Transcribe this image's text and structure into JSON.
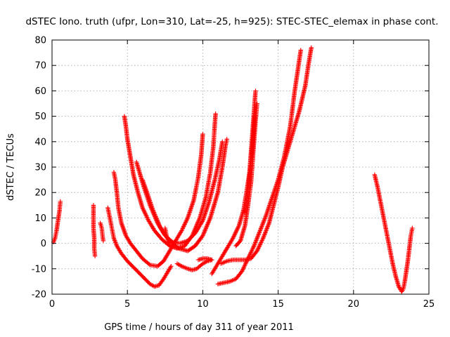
{
  "chart_data": {
    "type": "scatter",
    "title": "dSTEC Iono. truth (ufpr, Lon=310, Lat=-25, h=925): STEC-STEC_elemax in phase cont.",
    "xlabel": "GPS time / hours of day 311 of year 2011",
    "ylabel": "dSTEC  / TECUs",
    "xlim": [
      0,
      25
    ],
    "ylim": [
      -20,
      80
    ],
    "xticks": [
      0,
      5,
      10,
      15,
      20,
      25
    ],
    "yticks": [
      -20,
      -10,
      0,
      10,
      20,
      30,
      40,
      50,
      60,
      70,
      80
    ],
    "grid": true,
    "marker": "+",
    "color": "#ff0000",
    "series": [
      {
        "points": [
          [
            0.1,
            0.5
          ],
          [
            0.2,
            2
          ],
          [
            0.3,
            5
          ],
          [
            0.4,
            9
          ],
          [
            0.5,
            13
          ],
          [
            0.55,
            16.5
          ]
        ]
      },
      {
        "points": [
          [
            2.75,
            15
          ],
          [
            2.75,
            10
          ],
          [
            2.75,
            6
          ],
          [
            2.8,
            2
          ],
          [
            2.8,
            -2
          ],
          [
            2.85,
            -5
          ]
        ]
      },
      {
        "points": [
          [
            3.2,
            8
          ],
          [
            3.3,
            6
          ],
          [
            3.35,
            3
          ],
          [
            3.4,
            1
          ]
        ]
      },
      {
        "points": [
          [
            3.7,
            14
          ],
          [
            3.8,
            11
          ],
          [
            3.9,
            8
          ],
          [
            4.0,
            5
          ],
          [
            4.1,
            2
          ],
          [
            4.3,
            -1
          ],
          [
            4.6,
            -4
          ],
          [
            5.0,
            -7
          ],
          [
            5.5,
            -10
          ],
          [
            6.0,
            -13
          ],
          [
            6.5,
            -16
          ],
          [
            6.8,
            -17
          ],
          [
            7.1,
            -16.5
          ],
          [
            7.4,
            -14
          ],
          [
            7.7,
            -11
          ],
          [
            7.9,
            -9
          ]
        ]
      },
      {
        "points": [
          [
            4.1,
            28
          ],
          [
            4.2,
            25
          ],
          [
            4.3,
            20
          ],
          [
            4.4,
            14
          ],
          [
            4.6,
            8
          ],
          [
            4.9,
            3
          ],
          [
            5.2,
            0
          ],
          [
            5.6,
            -3
          ],
          [
            6.0,
            -6
          ],
          [
            6.5,
            -8.5
          ],
          [
            7.0,
            -9
          ],
          [
            7.4,
            -7
          ],
          [
            7.8,
            -3
          ],
          [
            8.2,
            1
          ],
          [
            8.6,
            5
          ],
          [
            9.0,
            10
          ],
          [
            9.4,
            17
          ],
          [
            9.7,
            26
          ],
          [
            9.9,
            35
          ],
          [
            10.0,
            43
          ]
        ]
      },
      {
        "points": [
          [
            4.8,
            50
          ],
          [
            4.9,
            46
          ],
          [
            5.0,
            41
          ],
          [
            5.2,
            34
          ],
          [
            5.4,
            27
          ],
          [
            5.7,
            20
          ],
          [
            6.0,
            14
          ],
          [
            6.4,
            9
          ],
          [
            6.8,
            5
          ],
          [
            7.3,
            1.5
          ],
          [
            7.8,
            -1
          ],
          [
            8.3,
            -2
          ],
          [
            8.8,
            -1
          ],
          [
            9.3,
            3
          ],
          [
            9.8,
            10
          ],
          [
            10.2,
            18
          ],
          [
            10.5,
            28
          ],
          [
            10.7,
            38
          ],
          [
            10.8,
            47
          ],
          [
            10.85,
            51
          ]
        ]
      },
      {
        "points": [
          [
            5.6,
            32
          ],
          [
            5.8,
            28
          ],
          [
            6.1,
            22
          ],
          [
            6.5,
            15
          ],
          [
            7.0,
            8
          ],
          [
            7.5,
            3
          ],
          [
            8.0,
            0.5
          ],
          [
            8.5,
            0
          ],
          [
            9.0,
            1
          ],
          [
            9.5,
            4
          ],
          [
            10.0,
            9
          ],
          [
            10.4,
            16
          ],
          [
            10.8,
            25
          ],
          [
            11.1,
            33
          ],
          [
            11.3,
            40
          ]
        ]
      },
      {
        "points": [
          [
            6.0,
            25
          ],
          [
            6.3,
            20
          ],
          [
            6.7,
            13
          ],
          [
            7.2,
            6
          ],
          [
            7.8,
            1
          ],
          [
            8.4,
            -2
          ],
          [
            9.0,
            -3
          ],
          [
            9.5,
            -1
          ],
          [
            10.0,
            3
          ],
          [
            10.5,
            10
          ],
          [
            11.0,
            20
          ],
          [
            11.3,
            30
          ],
          [
            11.5,
            38
          ],
          [
            11.6,
            41
          ]
        ]
      },
      {
        "points": [
          [
            7.5,
            6
          ],
          [
            7.6,
            3
          ],
          [
            7.7,
            1
          ],
          [
            7.8,
            -1
          ]
        ]
      },
      {
        "points": [
          [
            8.3,
            -8
          ],
          [
            8.6,
            -9
          ],
          [
            9.0,
            -10
          ],
          [
            9.3,
            -10.5
          ],
          [
            9.6,
            -10
          ],
          [
            9.8,
            -9
          ],
          [
            10.0,
            -8
          ],
          [
            10.3,
            -7
          ],
          [
            10.6,
            -6.5
          ]
        ]
      },
      {
        "points": [
          [
            9.7,
            -6.5
          ],
          [
            10.0,
            -6
          ],
          [
            10.3,
            -6
          ],
          [
            10.6,
            -6.5
          ]
        ]
      },
      {
        "points": [
          [
            10.6,
            -12
          ],
          [
            10.9,
            -9
          ],
          [
            11.2,
            -6
          ],
          [
            11.6,
            -2
          ],
          [
            12.0,
            2
          ],
          [
            12.4,
            7
          ],
          [
            12.7,
            13
          ],
          [
            12.9,
            20
          ],
          [
            13.1,
            28
          ],
          [
            13.2,
            36
          ],
          [
            13.3,
            44
          ],
          [
            13.4,
            52
          ],
          [
            13.5,
            60
          ]
        ]
      },
      {
        "points": [
          [
            11.0,
            -16
          ],
          [
            11.4,
            -15.5
          ],
          [
            11.8,
            -15
          ],
          [
            12.2,
            -14
          ],
          [
            12.6,
            -11
          ],
          [
            13.0,
            -6
          ],
          [
            13.4,
            -1
          ],
          [
            13.8,
            5
          ],
          [
            14.2,
            11
          ],
          [
            14.6,
            18
          ],
          [
            15.0,
            25
          ],
          [
            15.4,
            34
          ],
          [
            15.8,
            46
          ],
          [
            16.1,
            60
          ],
          [
            16.4,
            72
          ],
          [
            16.5,
            76
          ]
        ]
      },
      {
        "points": [
          [
            11.2,
            -8
          ],
          [
            11.6,
            -7
          ],
          [
            12.0,
            -6.5
          ],
          [
            12.4,
            -6.5
          ],
          [
            12.8,
            -6.5
          ],
          [
            13.2,
            -6
          ],
          [
            13.6,
            -3
          ],
          [
            14.0,
            2
          ],
          [
            14.4,
            8
          ],
          [
            14.7,
            15
          ],
          [
            15.0,
            22
          ],
          [
            15.3,
            30
          ],
          [
            15.6,
            36
          ],
          [
            16.0,
            44
          ],
          [
            16.4,
            52
          ],
          [
            16.8,
            62
          ],
          [
            17.0,
            70
          ],
          [
            17.2,
            77
          ]
        ]
      },
      {
        "points": [
          [
            12.2,
            -1
          ],
          [
            12.5,
            1
          ],
          [
            12.8,
            7
          ],
          [
            13.0,
            15
          ],
          [
            13.2,
            24
          ],
          [
            13.3,
            32
          ],
          [
            13.4,
            40
          ],
          [
            13.5,
            48
          ],
          [
            13.6,
            55
          ]
        ]
      },
      {
        "points": [
          [
            12.8,
            12
          ],
          [
            13.0,
            20
          ],
          [
            13.1,
            26
          ],
          [
            13.2,
            32
          ],
          [
            13.3,
            38
          ],
          [
            13.35,
            42
          ],
          [
            13.4,
            46
          ],
          [
            13.45,
            50
          ]
        ]
      },
      {
        "points": [
          [
            21.4,
            27
          ],
          [
            21.6,
            22
          ],
          [
            21.8,
            16
          ],
          [
            22.0,
            10
          ],
          [
            22.2,
            4
          ],
          [
            22.4,
            -2
          ],
          [
            22.6,
            -8
          ],
          [
            22.8,
            -13
          ],
          [
            23.0,
            -17
          ],
          [
            23.2,
            -19
          ],
          [
            23.3,
            -18
          ],
          [
            23.4,
            -15
          ],
          [
            23.5,
            -11
          ],
          [
            23.6,
            -7
          ],
          [
            23.7,
            -2
          ],
          [
            23.8,
            3
          ],
          [
            23.9,
            6
          ]
        ]
      }
    ]
  }
}
